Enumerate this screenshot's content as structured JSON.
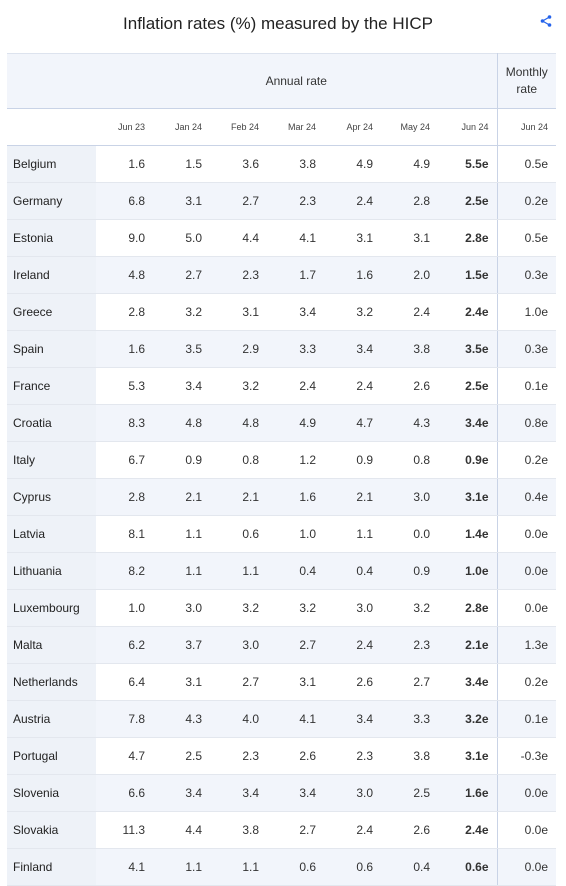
{
  "title": "Inflation rates (%) measured by the HICP",
  "share_icon": "share-icon",
  "accent_color": "#2563eb",
  "header": {
    "annual_label": "Annual rate",
    "monthly_label_line1": "Monthly",
    "monthly_label_line2": "rate",
    "months": [
      "Jun 23",
      "Jan 24",
      "Feb 24",
      "Mar 24",
      "Apr 24",
      "May 24",
      "Jun 24",
      "Jun 24"
    ]
  },
  "rows": [
    {
      "country": "Belgium",
      "values": [
        "1.6",
        "1.5",
        "3.6",
        "3.8",
        "4.9",
        "4.9",
        "5.5e",
        "0.5e"
      ]
    },
    {
      "country": "Germany",
      "values": [
        "6.8",
        "3.1",
        "2.7",
        "2.3",
        "2.4",
        "2.8",
        "2.5e",
        "0.2e"
      ]
    },
    {
      "country": "Estonia",
      "values": [
        "9.0",
        "5.0",
        "4.4",
        "4.1",
        "3.1",
        "3.1",
        "2.8e",
        "0.5e"
      ]
    },
    {
      "country": "Ireland",
      "values": [
        "4.8",
        "2.7",
        "2.3",
        "1.7",
        "1.6",
        "2.0",
        "1.5e",
        "0.3e"
      ]
    },
    {
      "country": "Greece",
      "values": [
        "2.8",
        "3.2",
        "3.1",
        "3.4",
        "3.2",
        "2.4",
        "2.4e",
        "1.0e"
      ]
    },
    {
      "country": "Spain",
      "values": [
        "1.6",
        "3.5",
        "2.9",
        "3.3",
        "3.4",
        "3.8",
        "3.5e",
        "0.3e"
      ]
    },
    {
      "country": "France",
      "values": [
        "5.3",
        "3.4",
        "3.2",
        "2.4",
        "2.4",
        "2.6",
        "2.5e",
        "0.1e"
      ]
    },
    {
      "country": "Croatia",
      "values": [
        "8.3",
        "4.8",
        "4.8",
        "4.9",
        "4.7",
        "4.3",
        "3.4e",
        "0.8e"
      ]
    },
    {
      "country": "Italy",
      "values": [
        "6.7",
        "0.9",
        "0.8",
        "1.2",
        "0.9",
        "0.8",
        "0.9e",
        "0.2e"
      ]
    },
    {
      "country": "Cyprus",
      "values": [
        "2.8",
        "2.1",
        "2.1",
        "1.6",
        "2.1",
        "3.0",
        "3.1e",
        "0.4e"
      ]
    },
    {
      "country": "Latvia",
      "values": [
        "8.1",
        "1.1",
        "0.6",
        "1.0",
        "1.1",
        "0.0",
        "1.4e",
        "0.0e"
      ]
    },
    {
      "country": "Lithuania",
      "values": [
        "8.2",
        "1.1",
        "1.1",
        "0.4",
        "0.4",
        "0.9",
        "1.0e",
        "0.0e"
      ]
    },
    {
      "country": "Luxembourg",
      "values": [
        "1.0",
        "3.0",
        "3.2",
        "3.2",
        "3.0",
        "3.2",
        "2.8e",
        "0.0e"
      ]
    },
    {
      "country": "Malta",
      "values": [
        "6.2",
        "3.7",
        "3.0",
        "2.7",
        "2.4",
        "2.3",
        "2.1e",
        "1.3e"
      ]
    },
    {
      "country": "Netherlands",
      "values": [
        "6.4",
        "3.1",
        "2.7",
        "3.1",
        "2.6",
        "2.7",
        "3.4e",
        "0.2e"
      ]
    },
    {
      "country": "Austria",
      "values": [
        "7.8",
        "4.3",
        "4.0",
        "4.1",
        "3.4",
        "3.3",
        "3.2e",
        "0.1e"
      ]
    },
    {
      "country": "Portugal",
      "values": [
        "4.7",
        "2.5",
        "2.3",
        "2.6",
        "2.3",
        "3.8",
        "3.1e",
        "-0.3e"
      ]
    },
    {
      "country": "Slovenia",
      "values": [
        "6.6",
        "3.4",
        "3.4",
        "3.4",
        "3.0",
        "2.5",
        "1.6e",
        "0.0e"
      ]
    },
    {
      "country": "Slovakia",
      "values": [
        "11.3",
        "4.4",
        "3.8",
        "2.7",
        "2.4",
        "2.6",
        "2.4e",
        "0.0e"
      ]
    },
    {
      "country": "Finland",
      "values": [
        "4.1",
        "1.1",
        "1.1",
        "0.6",
        "0.6",
        "0.4",
        "0.6e",
        "0.0e"
      ]
    }
  ]
}
